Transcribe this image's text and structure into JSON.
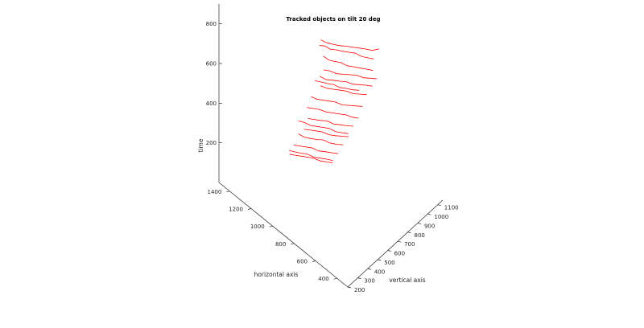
{
  "chart_data": {
    "type": "line",
    "title": "Tracked objects on tilt 20 deg",
    "xlabel": "horizontal axis",
    "ylabel": "vertical axis",
    "zlabel": "time",
    "x_ticks": [
      "400",
      "600",
      "800",
      "1000",
      "1200",
      "1400"
    ],
    "y_ticks": [
      "200",
      "300",
      "400",
      "500",
      "600",
      "700",
      "800",
      "900",
      "1000",
      "1100"
    ],
    "z_ticks": [
      "200",
      "400",
      "600",
      "800"
    ],
    "xlim": [
      300,
      1500
    ],
    "ylim": [
      200,
      1150
    ],
    "zlim": [
      0,
      900
    ],
    "projection": "3d",
    "grid": false,
    "series_color": "#ff0000",
    "series": [
      {
        "x": [
          735,
          760,
          790,
          815,
          845,
          870,
          895,
          925,
          950,
          975
        ],
        "y": [
          980,
          940,
          905,
          870,
          830,
          795,
          755,
          720,
          690,
          655
        ],
        "z": [
          650,
          650,
          660,
          670,
          680,
          690,
          700,
          710,
          720,
          740
        ]
      },
      {
        "x": [
          760,
          780,
          810,
          840,
          865,
          890,
          920,
          940,
          965,
          985
        ],
        "y": [
          955,
          925,
          890,
          855,
          820,
          785,
          750,
          715,
          685,
          650
        ],
        "z": [
          600,
          610,
          620,
          640,
          650,
          660,
          670,
          680,
          700,
          710
        ]
      },
      {
        "x": [
          745,
          775,
          800,
          830,
          855,
          885,
          910,
          935,
          960
        ],
        "y": [
          930,
          895,
          860,
          825,
          790,
          755,
          720,
          690,
          665
        ],
        "z": [
          560,
          570,
          580,
          590,
          600,
          620,
          630,
          640,
          660
        ]
      },
      {
        "x": [
          820,
          845,
          870,
          895,
          920,
          945,
          970,
          1000,
          1025
        ],
        "y": [
          1050,
          1010,
          970,
          930,
          890,
          850,
          810,
          770,
          735
        ],
        "z": [
          430,
          440,
          450,
          470,
          480,
          490,
          500,
          520,
          530
        ]
      },
      {
        "x": [
          835,
          860,
          885,
          910,
          935,
          960,
          985,
          1010,
          1040
        ],
        "y": [
          1020,
          985,
          945,
          905,
          865,
          825,
          790,
          750,
          715
        ],
        "z": [
          400,
          410,
          420,
          430,
          450,
          460,
          470,
          480,
          500
        ]
      },
      {
        "x": [
          860,
          885,
          910,
          935,
          960,
          990,
          1015,
          1040
        ],
        "y": [
          990,
          950,
          910,
          870,
          835,
          795,
          760,
          720
        ],
        "z": [
          360,
          370,
          380,
          400,
          410,
          420,
          430,
          450
        ]
      },
      {
        "x": [
          870,
          895,
          920,
          945,
          975,
          1000,
          1025,
          1050,
          1070
        ],
        "y": [
          960,
          920,
          880,
          840,
          800,
          765,
          730,
          695,
          660
        ],
        "z": [
          310,
          320,
          330,
          340,
          360,
          370,
          380,
          390,
          410
        ]
      },
      {
        "x": [
          845,
          870,
          900,
          925,
          950,
          975,
          1000,
          1030
        ],
        "y": [
          900,
          860,
          825,
          790,
          755,
          720,
          690,
          655
        ],
        "z": [
          430,
          440,
          450,
          460,
          480,
          490,
          500,
          510
        ]
      },
      {
        "x": [
          880,
          905,
          930,
          960,
          985,
          1010,
          1035,
          1060,
          1085
        ],
        "y": [
          930,
          895,
          855,
          815,
          780,
          745,
          705,
          670,
          635
        ],
        "z": [
          260,
          270,
          290,
          300,
          310,
          320,
          340,
          350,
          360
        ]
      },
      {
        "x": [
          905,
          930,
          955,
          985,
          1010,
          1035,
          1060,
          1085
        ],
        "y": [
          905,
          865,
          830,
          790,
          755,
          715,
          680,
          645
        ],
        "z": [
          220,
          230,
          240,
          250,
          270,
          280,
          290,
          300
        ]
      },
      {
        "x": [
          925,
          950,
          975,
          1000,
          1030,
          1055,
          1080,
          1100
        ],
        "y": [
          880,
          840,
          800,
          765,
          725,
          690,
          655,
          620
        ],
        "z": [
          170,
          180,
          190,
          200,
          220,
          230,
          240,
          250
        ]
      },
      {
        "x": [
          900,
          925,
          950,
          980,
          1005,
          1030,
          1055,
          1080,
          1110
        ],
        "y": [
          850,
          815,
          780,
          745,
          710,
          675,
          640,
          605,
          575
        ],
        "z": [
          210,
          220,
          230,
          250,
          260,
          270,
          280,
          300,
          310
        ]
      },
      {
        "x": [
          930,
          955,
          985,
          1010,
          1035,
          1060,
          1090,
          1115
        ],
        "y": [
          830,
          790,
          755,
          720,
          680,
          645,
          610,
          580
        ],
        "z": [
          150,
          160,
          170,
          190,
          200,
          210,
          220,
          240
        ]
      },
      {
        "x": [
          950,
          975,
          1000,
          1030,
          1055,
          1080,
          1105,
          1130
        ],
        "y": [
          800,
          765,
          730,
          690,
          655,
          620,
          585,
          550
        ],
        "z": [
          110,
          120,
          130,
          140,
          160,
          170,
          180,
          190
        ]
      },
      {
        "x": [
          980,
          1005,
          1030,
          1060,
          1085,
          1110,
          1135,
          1155
        ],
        "y": [
          780,
          745,
          710,
          670,
          635,
          600,
          565,
          535
        ],
        "z": [
          60,
          70,
          80,
          100,
          110,
          120,
          130,
          140
        ]
      },
      {
        "x": [
          960,
          990,
          1015,
          1040,
          1065,
          1090,
          1120,
          1145
        ],
        "y": [
          760,
          725,
          690,
          655,
          620,
          585,
          550,
          520
        ],
        "z": [
          90,
          100,
          110,
          120,
          140,
          150,
          160,
          170
        ]
      }
    ]
  }
}
